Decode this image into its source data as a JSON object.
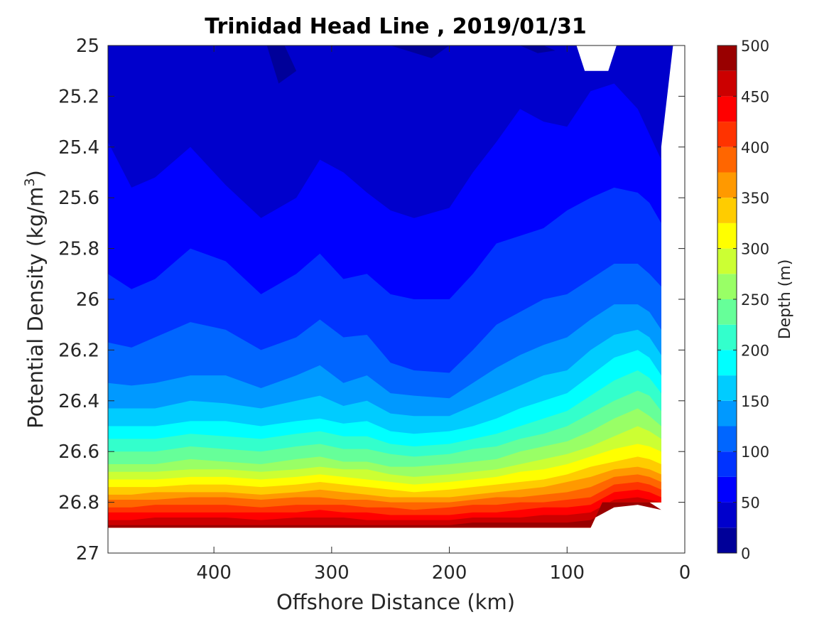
{
  "chart_data": {
    "type": "filled-contour",
    "title": "Trinidad Head Line , 2019/01/31",
    "xlabel": "Offshore Distance (km)",
    "ylabel": "Potential Density (kg/m",
    "ylabel_sup": "3",
    "ylabel_close": ")",
    "xlim": [
      490,
      0
    ],
    "ylim": [
      25,
      27
    ],
    "x_reversed": true,
    "y_reversed": true,
    "xticks": [
      "400",
      "300",
      "200",
      "100",
      "0"
    ],
    "xtick_values": [
      400,
      300,
      200,
      100,
      0
    ],
    "yticks": [
      "25",
      "25.2",
      "25.4",
      "25.6",
      "25.8",
      "26",
      "26.2",
      "26.4",
      "26.6",
      "26.8",
      "27"
    ],
    "ytick_values": [
      25,
      25.2,
      25.4,
      25.6,
      25.8,
      26,
      26.2,
      26.4,
      26.6,
      26.8,
      27
    ],
    "colorbar": {
      "label": "Depth (m)",
      "range": [
        0,
        500
      ],
      "ticks": [
        "0",
        "50",
        "100",
        "150",
        "200",
        "250",
        "300",
        "350",
        "400",
        "450",
        "500"
      ],
      "tick_values": [
        0,
        50,
        100,
        150,
        200,
        250,
        300,
        350,
        400,
        450,
        500
      ],
      "level_step": 25,
      "colormap": "jet"
    },
    "field": {
      "description_of_contours": "depth of isopycnal, contoured every 25 m",
      "x": [
        490,
        470,
        450,
        420,
        390,
        360,
        330,
        310,
        290,
        270,
        250,
        230,
        200,
        180,
        160,
        140,
        120,
        100,
        80,
        60,
        40,
        30,
        20
      ],
      "isolines": [
        {
          "level": 50,
          "sigma": [
            25.38,
            25.56,
            25.52,
            25.4,
            25.55,
            25.68,
            25.6,
            25.45,
            25.5,
            25.58,
            25.65,
            25.68,
            25.64,
            25.5,
            25.38,
            25.25,
            25.3,
            25.32,
            25.18,
            25.15,
            25.25,
            25.35,
            25.45
          ]
        },
        {
          "level": 75,
          "sigma": [
            25.9,
            25.96,
            25.92,
            25.8,
            25.85,
            25.98,
            25.9,
            25.82,
            25.92,
            25.9,
            25.98,
            26.0,
            26.0,
            25.9,
            25.78,
            25.75,
            25.72,
            25.65,
            25.6,
            25.56,
            25.58,
            25.62,
            25.7
          ]
        },
        {
          "level": 100,
          "sigma": [
            26.17,
            26.19,
            26.15,
            26.09,
            26.12,
            26.2,
            26.15,
            26.08,
            26.15,
            26.14,
            26.25,
            26.28,
            26.29,
            26.2,
            26.1,
            26.05,
            26.0,
            25.98,
            25.92,
            25.86,
            25.86,
            25.9,
            25.95
          ]
        },
        {
          "level": 125,
          "sigma": [
            26.33,
            26.34,
            26.33,
            26.3,
            26.3,
            26.35,
            26.3,
            26.26,
            26.33,
            26.3,
            26.37,
            26.38,
            26.39,
            26.33,
            26.27,
            26.22,
            26.18,
            26.15,
            26.08,
            26.02,
            26.02,
            26.05,
            26.12
          ]
        },
        {
          "level": 150,
          "sigma": [
            26.43,
            26.43,
            26.43,
            26.4,
            26.41,
            26.43,
            26.4,
            26.38,
            26.42,
            26.4,
            26.45,
            26.46,
            26.46,
            26.42,
            26.38,
            26.34,
            26.3,
            26.28,
            26.2,
            26.14,
            26.12,
            26.15,
            26.22
          ]
        },
        {
          "level": 175,
          "sigma": [
            26.5,
            26.5,
            26.5,
            26.48,
            26.48,
            26.5,
            26.48,
            26.47,
            26.49,
            26.48,
            26.52,
            26.53,
            26.52,
            26.5,
            26.47,
            26.43,
            26.4,
            26.37,
            26.3,
            26.23,
            26.2,
            26.23,
            26.3
          ]
        },
        {
          "level": 200,
          "sigma": [
            26.55,
            26.55,
            26.55,
            26.53,
            26.54,
            26.55,
            26.53,
            26.52,
            26.54,
            26.54,
            26.57,
            26.58,
            26.57,
            26.55,
            26.53,
            26.5,
            26.47,
            26.44,
            26.38,
            26.32,
            26.28,
            26.31,
            26.37
          ]
        },
        {
          "level": 225,
          "sigma": [
            26.6,
            26.6,
            26.6,
            26.58,
            26.59,
            26.6,
            26.58,
            26.57,
            26.59,
            26.59,
            26.61,
            26.62,
            26.61,
            26.59,
            26.58,
            26.55,
            26.53,
            26.5,
            26.45,
            26.4,
            26.36,
            26.38,
            26.44
          ]
        },
        {
          "level": 250,
          "sigma": [
            26.65,
            26.65,
            26.65,
            26.63,
            26.64,
            26.65,
            26.63,
            26.62,
            26.64,
            26.64,
            26.66,
            26.66,
            26.65,
            26.64,
            26.63,
            26.6,
            26.58,
            26.56,
            26.52,
            26.47,
            26.43,
            26.46,
            26.5
          ]
        },
        {
          "level": 275,
          "sigma": [
            26.68,
            26.68,
            26.68,
            26.67,
            26.67,
            26.68,
            26.67,
            26.66,
            26.67,
            26.67,
            26.69,
            26.7,
            26.69,
            26.68,
            26.67,
            26.65,
            26.63,
            26.61,
            26.58,
            26.54,
            26.5,
            26.52,
            26.55
          ]
        },
        {
          "level": 300,
          "sigma": [
            26.71,
            26.71,
            26.71,
            26.7,
            26.7,
            26.71,
            26.7,
            26.69,
            26.7,
            26.71,
            26.72,
            26.73,
            26.72,
            26.71,
            26.7,
            26.68,
            26.67,
            26.65,
            26.62,
            26.59,
            26.57,
            26.58,
            26.6
          ]
        },
        {
          "level": 325,
          "sigma": [
            26.74,
            26.74,
            26.74,
            26.73,
            26.73,
            26.74,
            26.73,
            26.72,
            26.73,
            26.74,
            26.75,
            26.76,
            26.75,
            26.74,
            26.73,
            26.72,
            26.71,
            26.69,
            26.66,
            26.64,
            26.62,
            26.63,
            26.65
          ]
        },
        {
          "level": 350,
          "sigma": [
            26.77,
            26.77,
            26.76,
            26.76,
            26.76,
            26.77,
            26.76,
            26.75,
            26.76,
            26.77,
            26.78,
            26.78,
            26.78,
            26.77,
            26.76,
            26.75,
            26.74,
            26.72,
            26.7,
            26.67,
            26.66,
            26.67,
            26.69
          ]
        },
        {
          "level": 375,
          "sigma": [
            26.79,
            26.79,
            26.79,
            26.78,
            26.78,
            26.79,
            26.78,
            26.78,
            26.79,
            26.79,
            26.8,
            26.8,
            26.8,
            26.79,
            26.78,
            26.78,
            26.77,
            26.76,
            26.74,
            26.7,
            26.69,
            26.7,
            26.72
          ]
        },
        {
          "level": 400,
          "sigma": [
            26.82,
            26.82,
            26.81,
            26.81,
            26.81,
            26.82,
            26.81,
            26.81,
            26.81,
            26.82,
            26.82,
            26.83,
            26.82,
            26.81,
            26.81,
            26.8,
            26.8,
            26.79,
            26.78,
            26.73,
            26.72,
            26.73,
            26.75
          ]
        },
        {
          "level": 425,
          "sigma": [
            26.84,
            26.84,
            26.84,
            26.84,
            26.84,
            26.84,
            26.84,
            26.83,
            26.84,
            26.84,
            26.85,
            26.85,
            26.85,
            26.84,
            26.84,
            26.83,
            26.82,
            26.82,
            26.81,
            26.76,
            26.75,
            26.76,
            26.78
          ]
        },
        {
          "level": 450,
          "sigma": [
            26.87,
            26.87,
            26.86,
            26.86,
            26.86,
            26.87,
            26.86,
            26.86,
            26.86,
            26.87,
            26.87,
            26.87,
            26.87,
            26.86,
            26.86,
            26.86,
            26.85,
            26.85,
            26.84,
            26.79,
            26.78,
            26.79,
            26.8
          ]
        },
        {
          "level": 475,
          "sigma": [
            26.89,
            26.89,
            26.89,
            26.89,
            26.89,
            26.89,
            26.89,
            26.89,
            26.89,
            26.89,
            26.89,
            26.89,
            26.89,
            26.88,
            26.88,
            26.88,
            26.88,
            26.88,
            26.87,
            26.82,
            26.81,
            26.82,
            26.83
          ]
        }
      ],
      "shallow_patches_level_25": [
        {
          "x": [
            355,
            340,
            330,
            345
          ],
          "sigma": [
            25.0,
            25.0,
            25.1,
            25.15
          ]
        },
        {
          "x": [
            250,
            235,
            200,
            215
          ],
          "sigma": [
            25.0,
            25.0,
            25.0,
            25.05
          ]
        },
        {
          "x": [
            140,
            120,
            110,
            125
          ],
          "sigma": [
            25.0,
            25.0,
            25.02,
            25.03
          ]
        }
      ],
      "bottom_limit": {
        "x": [
          490,
          80,
          70,
          30
        ],
        "sigma": [
          26.9,
          26.9,
          26.8,
          26.8
        ]
      },
      "top_gap": {
        "x": [
          85,
          65
        ],
        "sigma": [
          25.1,
          25.1
        ]
      },
      "right_edge": {
        "x": [
          10,
          20,
          20,
          30,
          30
        ],
        "sigma": [
          25.0,
          25.4,
          26.5,
          26.6,
          26.8
        ]
      }
    }
  }
}
